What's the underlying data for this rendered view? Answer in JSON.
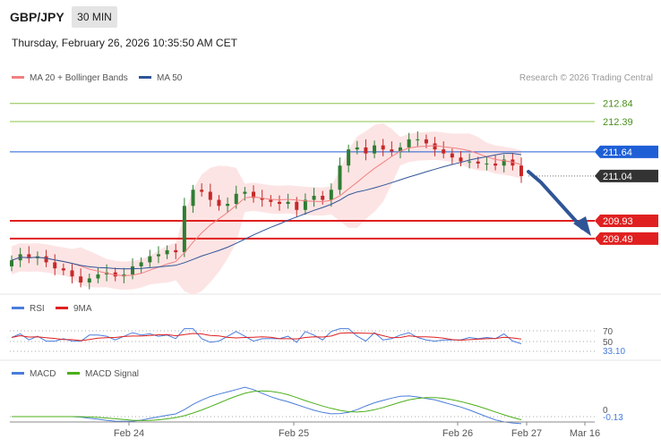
{
  "header": {
    "symbol": "GBP/JPY",
    "timeframe": "30 MIN",
    "datetime": "Thursday, February 26, 2026 10:35:50 AM CET",
    "credit": "Research © 2026 Trading Central"
  },
  "colors": {
    "bollinger": "#f08080",
    "bollinger_fill": "#fde4e4",
    "ma50": "#2f5597",
    "candle_up": "#2e7d32",
    "candle_down": "#c62828",
    "target_line": "#8bc34a",
    "pivot": "#1e5fd6",
    "support": "#e02020",
    "last_price": "#333333",
    "rsi": "#4a7ddb",
    "rsi_ma": "#e02020",
    "macd": "#4a7ddb",
    "macd_signal": "#4caf1a",
    "arrow": "#2f5597"
  },
  "chart_data": [
    {
      "type": "candlestick",
      "legend": [
        "MA 20 + Bollinger Bands",
        "MA 50"
      ],
      "x_ticks": [
        "Feb 24",
        "Feb 25",
        "Feb 26",
        "Feb 27",
        "Mar 16"
      ],
      "levels": [
        {
          "value": 212.84,
          "label": "212.84",
          "role": "target"
        },
        {
          "value": 212.39,
          "label": "212.39",
          "role": "target"
        },
        {
          "value": 211.64,
          "label": "211.64",
          "role": "pivot"
        },
        {
          "value": 211.04,
          "label": "211.04",
          "role": "last"
        },
        {
          "value": 209.93,
          "label": "209.93",
          "role": "support"
        },
        {
          "value": 209.49,
          "label": "209.49",
          "role": "support"
        }
      ],
      "ohlc_close_trace": [
        208.95,
        209.1,
        209.0,
        209.05,
        208.9,
        208.75,
        208.7,
        208.55,
        208.4,
        208.5,
        208.6,
        208.65,
        208.55,
        208.6,
        208.8,
        208.9,
        209.05,
        209.1,
        209.2,
        209.15,
        210.3,
        210.7,
        210.65,
        210.45,
        210.3,
        210.35,
        210.6,
        210.65,
        210.5,
        210.45,
        210.4,
        210.35,
        210.4,
        210.2,
        210.45,
        210.55,
        210.45,
        210.7,
        211.3,
        211.7,
        211.75,
        211.6,
        211.8,
        211.7,
        211.65,
        211.75,
        211.95,
        211.95,
        211.85,
        211.7,
        211.6,
        211.5,
        211.4,
        211.4,
        211.35,
        211.35,
        211.3,
        211.45,
        211.3,
        211.04
      ],
      "ylim": [
        208.2,
        213.3
      ]
    },
    {
      "type": "line",
      "name": "RSI",
      "legend": [
        "RSI",
        "9MA"
      ],
      "y_ticks": [
        70,
        50
      ],
      "last_value_label": "33.10",
      "ylim": [
        0,
        100
      ]
    },
    {
      "type": "line",
      "name": "MACD",
      "legend": [
        "MACD",
        "MACD Signal"
      ],
      "y_ticks": [
        0
      ],
      "last_value_label": "-0.13"
    }
  ]
}
